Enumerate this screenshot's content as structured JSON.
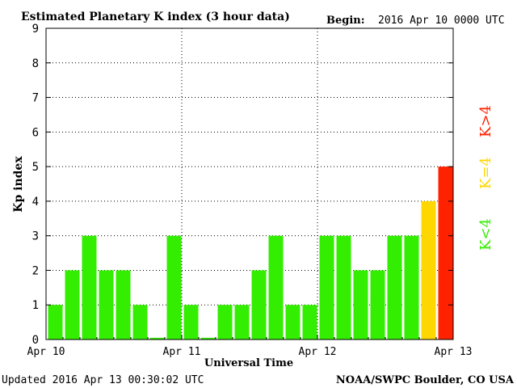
{
  "chart_data": {
    "type": "bar",
    "title": "Estimated Planetary K index (3 hour data)",
    "begin_label": "Begin:",
    "begin_value": "2016 Apr 10 0000 UTC",
    "ylabel": "Kp index",
    "xlabel": "Universal Time",
    "ylim": [
      0,
      9
    ],
    "y_ticks": [
      "0",
      "1",
      "2",
      "3",
      "4",
      "5",
      "6",
      "7",
      "8",
      "9"
    ],
    "x_ticks": [
      "Apr 10",
      "Apr 11",
      "Apr 12",
      "Apr 13"
    ],
    "values": [
      1,
      2,
      3,
      2,
      2,
      1,
      0.05,
      3,
      1,
      0.05,
      1,
      1,
      2,
      3,
      1,
      1,
      3,
      3,
      2,
      2,
      3,
      3,
      4,
      5
    ],
    "legend": [
      {
        "label": "K<4",
        "color": "#33ee00"
      },
      {
        "label": "K=4",
        "color": "#ffd700"
      },
      {
        "label": "K>4",
        "color": "#ff2200"
      }
    ],
    "grid": true
  },
  "footer": {
    "updated": "Updated 2016 Apr 13 00:30:02 UTC",
    "source": "NOAA/SWPC Boulder, CO USA"
  }
}
